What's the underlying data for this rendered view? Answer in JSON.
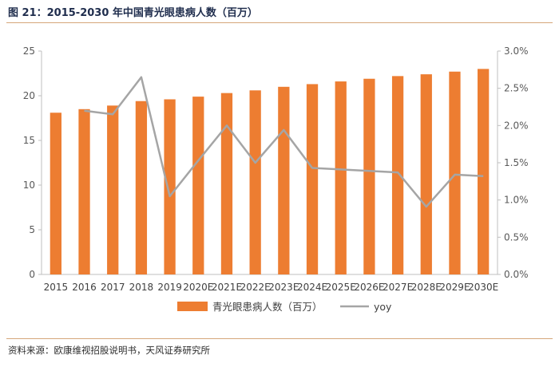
{
  "figure": {
    "title": "图 21：2015-2030 年中国青光眼患病人数（百万）",
    "source": "资料来源：欧康维视招股说明书，天风证券研究所"
  },
  "chart_data": {
    "type": "bar",
    "categories": [
      "2015",
      "2016",
      "2017",
      "2018",
      "2019",
      "2020E",
      "2021E",
      "2022E",
      "2023E",
      "2024E",
      "2025E",
      "2026E",
      "2027E",
      "2028E",
      "2029E",
      "2030E"
    ],
    "series": [
      {
        "name": "青光眼患病人数（百万）",
        "type": "bar",
        "axis": "left",
        "color": "#ed7d31",
        "values": [
          18.1,
          18.5,
          18.9,
          19.4,
          19.6,
          19.9,
          20.3,
          20.6,
          21.0,
          21.3,
          21.6,
          21.9,
          22.2,
          22.4,
          22.7,
          23.0
        ]
      },
      {
        "name": "yoy",
        "type": "line",
        "axis": "right",
        "color": "#a5a5a5",
        "values": [
          null,
          0.022,
          0.0215,
          0.0265,
          0.0105,
          0.0153,
          0.02,
          0.015,
          0.0194,
          0.0143,
          0.0141,
          0.0139,
          0.0137,
          0.0091,
          0.0134,
          0.0132
        ]
      }
    ],
    "y_left": {
      "min": 0,
      "max": 25,
      "ticks": [
        0,
        5,
        10,
        15,
        20,
        25
      ],
      "tick_labels": [
        "0",
        "5",
        "10",
        "15",
        "20",
        "25"
      ]
    },
    "y_right": {
      "min": 0,
      "max": 0.03,
      "ticks": [
        0,
        0.005,
        0.01,
        0.015,
        0.02,
        0.025,
        0.03
      ],
      "tick_labels": [
        "0.0%",
        "0.5%",
        "1.0%",
        "1.5%",
        "2.0%",
        "2.5%",
        "3.0%"
      ]
    },
    "legend": {
      "position": "bottom-center",
      "items": [
        "青光眼患病人数（百万）",
        "yoy"
      ]
    },
    "grid": false
  }
}
